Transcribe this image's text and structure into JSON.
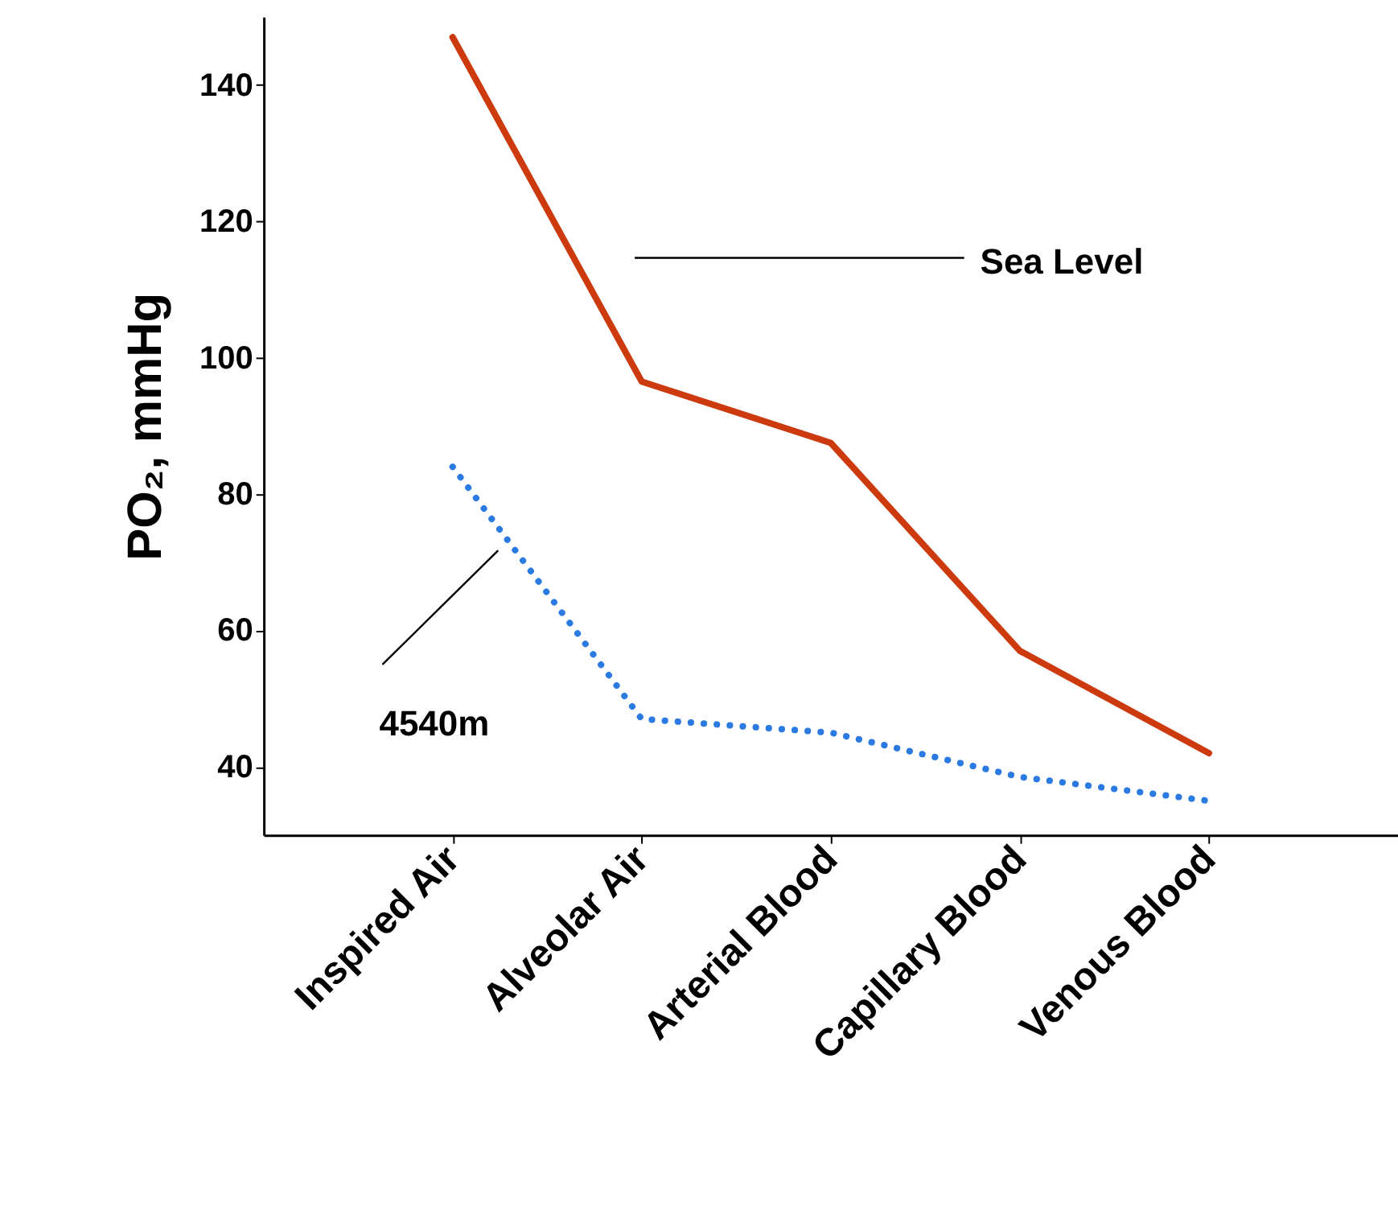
{
  "chart_data": {
    "type": "line",
    "ylabel": "PO₂, mmHg",
    "categories": [
      "Inspired Air",
      "Alveolar Air",
      "Arterial Blood",
      "Capillary Blood",
      "Venous Blood"
    ],
    "series": [
      {
        "color": "#cc3a0e",
        "line_style": "solid",
        "values": [
          147,
          96.5,
          87.5,
          57,
          42
        ]
      },
      {
        "color": "#2a7ae2",
        "line_style": "dotted",
        "values": [
          84,
          47,
          45,
          38.5,
          35
        ]
      }
    ],
    "annotations": [
      "Sea Level",
      "4540m"
    ],
    "ylim": [
      30,
      150
    ],
    "yticks": [
      40,
      60,
      80,
      100,
      120,
      140
    ],
    "grid": false,
    "marker": "none"
  }
}
